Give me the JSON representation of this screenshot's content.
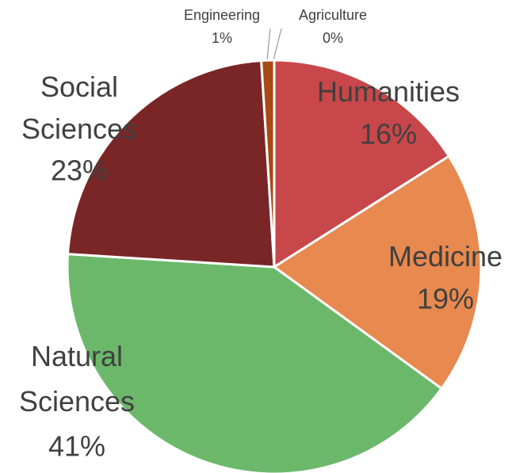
{
  "chart_data": {
    "type": "pie",
    "categories": [
      "Agriculture",
      "Humanities",
      "Medicine",
      "Natural Sciences",
      "Social Sciences",
      "Engineering"
    ],
    "values": [
      0,
      16,
      19,
      41,
      23,
      1
    ],
    "value_labels": [
      "0%",
      "16%",
      "19%",
      "41%",
      "23%",
      "1%"
    ],
    "colors": [
      "#8c8c8c",
      "#c8474a",
      "#e8894f",
      "#6cb86b",
      "#7a2626",
      "#a84a14"
    ]
  }
}
